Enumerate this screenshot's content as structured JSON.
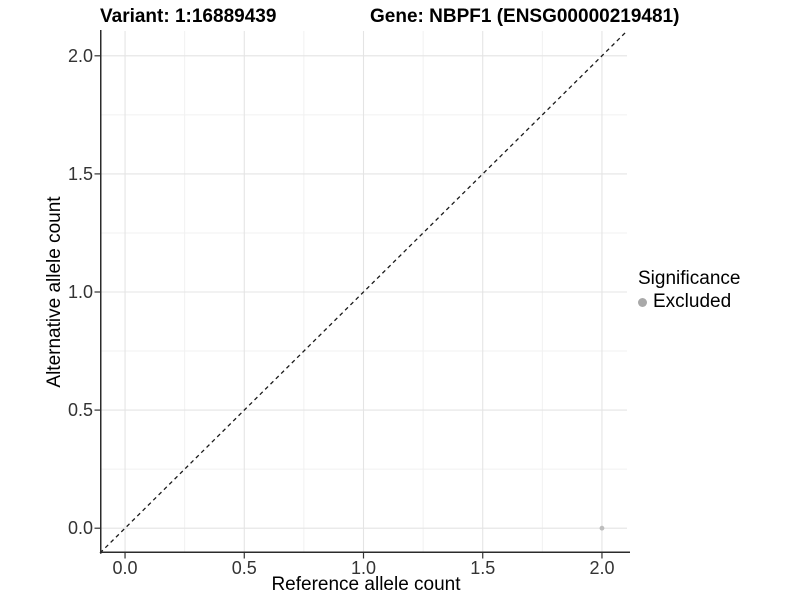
{
  "chart_data": {
    "type": "scatter",
    "titles": {
      "left": "Variant: 1:16889439",
      "right": "Gene: NBPF1 (ENSG00000219481)"
    },
    "xlabel": "Reference allele count",
    "ylabel": "Alternative allele count",
    "xlim": [
      -0.105,
      2.105
    ],
    "ylim": [
      -0.105,
      2.105
    ],
    "x_ticks": [
      {
        "value": 0.0,
        "label": "0.0"
      },
      {
        "value": 0.5,
        "label": "0.5"
      },
      {
        "value": 1.0,
        "label": "1.0"
      },
      {
        "value": 1.5,
        "label": "1.5"
      },
      {
        "value": 2.0,
        "label": "2.0"
      }
    ],
    "y_ticks": [
      {
        "value": 0.0,
        "label": "0.0"
      },
      {
        "value": 0.5,
        "label": "0.5"
      },
      {
        "value": 1.0,
        "label": "1.0"
      },
      {
        "value": 1.5,
        "label": "1.5"
      },
      {
        "value": 2.0,
        "label": "2.0"
      }
    ],
    "x_minor": [
      0.25,
      0.75,
      1.25,
      1.75
    ],
    "y_minor": [
      0.25,
      0.75,
      1.25,
      1.75
    ],
    "grid": true,
    "points": [
      {
        "x": 2.0,
        "y": 0.0,
        "series": "Excluded",
        "color": "#bdbdbd",
        "radius": 2.4
      }
    ],
    "identity_line": {
      "style": "dashed",
      "slope": 1,
      "intercept": 0,
      "color": "#1a1a1a"
    },
    "legend": {
      "position": "right",
      "title": "Significance",
      "items": [
        {
          "label": "Excluded",
          "marker_color": "#a9a9a9"
        }
      ]
    }
  },
  "colors": {
    "background": "#ffffff",
    "grid_major": "#e4e4e4",
    "grid_minor": "#f1f1f1",
    "axis_line": "#2b2b2b",
    "tick_mark": "#333333",
    "tick_label": "#333333",
    "title": "#000000"
  }
}
